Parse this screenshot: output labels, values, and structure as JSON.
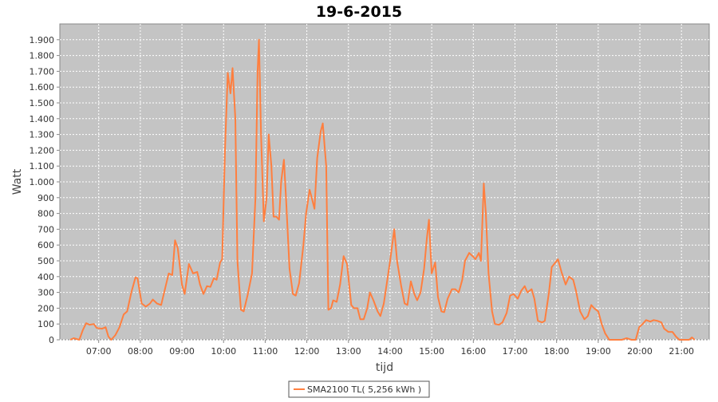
{
  "chart_data": {
    "type": "line",
    "title": "19-6-2015",
    "x_label": "tijd",
    "y_label": "Watt",
    "xlim": [
      "06:04",
      "21:40"
    ],
    "xticks": [
      "07:00",
      "08:00",
      "09:00",
      "10:00",
      "11:00",
      "12:00",
      "13:00",
      "14:00",
      "15:00",
      "16:00",
      "17:00",
      "18:00",
      "19:00",
      "20:00",
      "21:00"
    ],
    "ylim": [
      0,
      2000
    ],
    "yticks": [
      0,
      100,
      200,
      300,
      400,
      500,
      600,
      700,
      800,
      900,
      {
        "value": 1000,
        "label": "1.000"
      },
      {
        "value": 1100,
        "label": "1.100"
      },
      {
        "value": 1200,
        "label": "1.200"
      },
      {
        "value": 1300,
        "label": "1.300"
      },
      {
        "value": 1400,
        "label": "1.400"
      },
      {
        "value": 1500,
        "label": "1.500"
      },
      {
        "value": 1600,
        "label": "1.600"
      },
      {
        "value": 1700,
        "label": "1.700"
      },
      {
        "value": 1800,
        "label": "1.800"
      },
      {
        "value": 1900,
        "label": "1.900"
      }
    ],
    "grid": true,
    "x": [
      "06:19",
      "06:24",
      "06:32",
      "06:37",
      "06:42",
      "06:47",
      "06:53",
      "06:57",
      "07:05",
      "07:10",
      "07:14",
      "07:18",
      "07:24",
      "07:30",
      "07:36",
      "07:41",
      "07:47",
      "07:53",
      "07:56",
      "08:02",
      "08:08",
      "08:14",
      "08:18",
      "08:24",
      "08:30",
      "08:36",
      "08:41",
      "08:46",
      "08:50",
      "08:54",
      "09:00",
      "09:04",
      "09:10",
      "09:16",
      "09:22",
      "09:26",
      "09:31",
      "09:36",
      "09:41",
      "09:46",
      "09:50",
      "09:55",
      "09:58",
      "10:02",
      "10:06",
      "10:10",
      "10:13",
      "10:17",
      "10:20",
      "10:25",
      "10:29",
      "10:35",
      "10:41",
      "10:46",
      "10:49",
      "10:51",
      "10:54",
      "10:58",
      "11:02",
      "11:05",
      "11:09",
      "11:12",
      "11:16",
      "11:20",
      "11:23",
      "11:27",
      "11:30",
      "11:35",
      "11:40",
      "11:44",
      "11:49",
      "11:55",
      "11:59",
      "12:04",
      "12:07",
      "12:11",
      "12:15",
      "12:20",
      "12:23",
      "12:28",
      "12:31",
      "12:35",
      "12:38",
      "12:43",
      "12:48",
      "12:53",
      "12:58",
      "13:04",
      "13:08",
      "13:13",
      "13:17",
      "13:22",
      "13:27",
      "13:31",
      "13:36",
      "13:42",
      "13:46",
      "13:51",
      "13:56",
      "14:00",
      "14:06",
      "14:10",
      "14:16",
      "14:21",
      "14:25",
      "14:30",
      "14:35",
      "14:39",
      "14:44",
      "14:49",
      "14:53",
      "14:56",
      "15:00",
      "15:05",
      "15:09",
      "15:14",
      "15:18",
      "15:23",
      "15:29",
      "15:34",
      "15:39",
      "15:44",
      "15:48",
      "15:54",
      "15:59",
      "16:03",
      "16:08",
      "16:11",
      "16:15",
      "16:18",
      "16:22",
      "16:27",
      "16:31",
      "16:37",
      "16:42",
      "16:48",
      "16:53",
      "16:58",
      "17:04",
      "17:09",
      "17:14",
      "17:18",
      "17:24",
      "17:28",
      "17:33",
      "17:39",
      "17:43",
      "17:49",
      "17:53",
      "18:02",
      "18:07",
      "18:13",
      "18:18",
      "18:24",
      "18:28",
      "18:34",
      "18:40",
      "18:45",
      "18:50",
      "18:54",
      "19:00",
      "19:05",
      "19:10",
      "19:16",
      "19:23",
      "19:34",
      "19:41",
      "19:48",
      "19:54",
      "19:59",
      "20:04",
      "20:09",
      "20:15",
      "20:20",
      "20:25",
      "20:31",
      "20:35",
      "20:41",
      "20:47",
      "20:52",
      "20:57",
      "21:04",
      "21:11",
      "21:15",
      "21:19"
    ],
    "series": [
      {
        "name": "SMA2100 TL( 5,256 kWh )",
        "color": "#ff7f3f",
        "values": [
          0,
          10,
          0,
          60,
          105,
          95,
          100,
          75,
          70,
          80,
          20,
          0,
          30,
          80,
          160,
          180,
          300,
          395,
          390,
          230,
          210,
          230,
          255,
          230,
          220,
          330,
          420,
          410,
          630,
          580,
          350,
          290,
          480,
          420,
          430,
          350,
          290,
          340,
          335,
          390,
          380,
          490,
          510,
          1200,
          1690,
          1560,
          1720,
          1400,
          500,
          190,
          180,
          290,
          420,
          900,
          1700,
          1900,
          1300,
          750,
          900,
          1300,
          1100,
          780,
          780,
          760,
          1000,
          1140,
          900,
          450,
          290,
          280,
          360,
          600,
          800,
          950,
          900,
          830,
          1150,
          1320,
          1370,
          1100,
          190,
          200,
          250,
          240,
          350,
          530,
          480,
          220,
          200,
          200,
          130,
          130,
          200,
          300,
          250,
          180,
          150,
          230,
          380,
          500,
          700,
          500,
          340,
          230,
          220,
          370,
          290,
          250,
          300,
          450,
          640,
          760,
          420,
          490,
          270,
          180,
          175,
          260,
          320,
          320,
          300,
          380,
          500,
          550,
          530,
          510,
          550,
          500,
          990,
          800,
          420,
          180,
          100,
          95,
          110,
          170,
          280,
          290,
          260,
          310,
          340,
          300,
          320,
          260,
          120,
          110,
          120,
          300,
          460,
          510,
          430,
          350,
          400,
          380,
          310,
          180,
          130,
          150,
          220,
          200,
          180,
          100,
          40,
          0,
          0,
          0,
          10,
          0,
          0,
          80,
          100,
          125,
          115,
          125,
          120,
          110,
          70,
          50,
          50,
          20,
          0,
          0,
          0,
          15,
          0
        ]
      }
    ]
  }
}
